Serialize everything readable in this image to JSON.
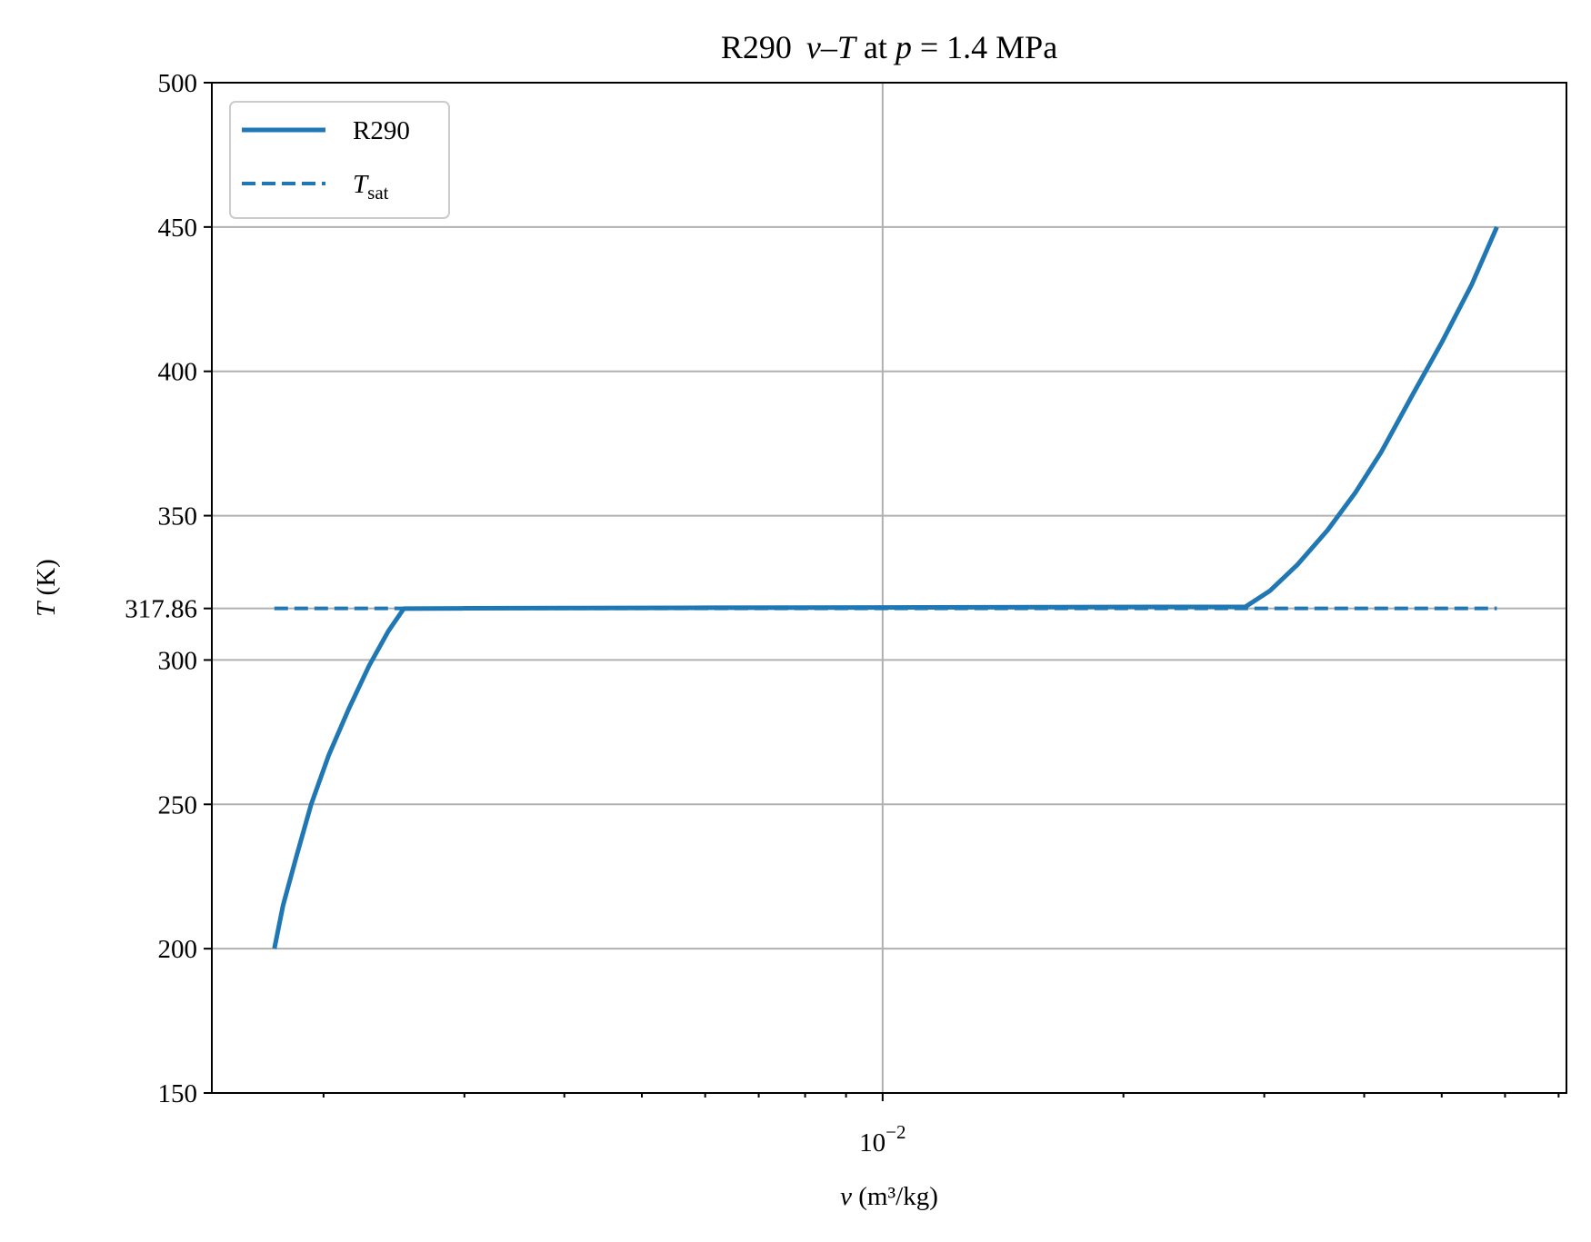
{
  "chart_data": {
    "type": "line",
    "title_parts": [
      "R290",
      "v",
      "–",
      "T",
      " at ",
      "p",
      " = ",
      "1.4 MPa"
    ],
    "xlabel_parts": [
      "v",
      " (m³/kg)"
    ],
    "ylabel_parts": [
      "T",
      " (K)"
    ],
    "xscale": "log",
    "xlim": [
      0.00145,
      0.0716
    ],
    "ylim": [
      150,
      500
    ],
    "yticks": [
      150,
      200,
      250,
      300,
      317.86,
      350,
      400,
      450,
      500
    ],
    "ytick_labels": [
      "150",
      "200",
      "250",
      "300",
      "317.86",
      "350",
      "400",
      "450",
      "500"
    ],
    "xticks_major": [
      0.01
    ],
    "xtick_label_parts": [
      "10",
      "−2"
    ],
    "grid": true,
    "legend_position": "upper-left",
    "color": "#1f77b4",
    "series": [
      {
        "name": "R290",
        "style": "solid",
        "x": [
          0.001736,
          0.00178,
          0.00185,
          0.00193,
          0.00203,
          0.00215,
          0.00228,
          0.00241,
          0.00252,
          0.003,
          0.004,
          0.006,
          0.01,
          0.016,
          0.022,
          0.0284,
          0.0305,
          0.033,
          0.036,
          0.039,
          0.042,
          0.046,
          0.05,
          0.0545,
          0.0586
        ],
        "y": [
          200,
          215,
          232,
          250,
          267,
          283,
          298,
          310,
          317.8,
          317.9,
          318.0,
          318.1,
          318.2,
          318.3,
          318.4,
          318.4,
          324,
          333,
          345,
          358,
          372,
          392,
          410,
          430,
          450
        ]
      },
      {
        "name": "Tsat",
        "label_main": "T",
        "label_sub": "sat",
        "style": "dashed",
        "x": [
          0.001736,
          0.0586
        ],
        "y": [
          317.86,
          317.86
        ]
      }
    ]
  }
}
